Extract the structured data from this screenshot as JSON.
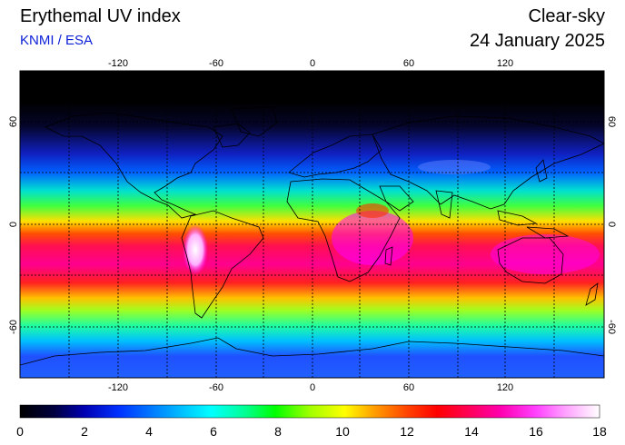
{
  "header": {
    "title": "Erythemal UV index",
    "subtitle": "KNMI / ESA",
    "condition": "Clear-sky",
    "date": "24 January 2025"
  },
  "map": {
    "projection": "equirectangular",
    "lon_ticks": [
      "-120",
      "-60",
      "0",
      "60",
      "120"
    ],
    "lat_ticks_left": [
      "60",
      "0",
      "-60"
    ],
    "lat_ticks_right": [
      "60",
      "0",
      "-60"
    ],
    "graticule": "dotted",
    "field_description_colors": {
      "polar_night": "#000000",
      "low": "#0000ff",
      "mid_low": "#00ffff",
      "mid": "#00ff00",
      "mid_high": "#ffff00",
      "high": "#ff0000",
      "very_high": "#ff00ff",
      "extreme": "#ffffff"
    }
  },
  "colorbar": {
    "min": 0,
    "max": 18,
    "labels": [
      "0",
      "2",
      "4",
      "6",
      "8",
      "10",
      "12",
      "14",
      "16",
      "18"
    ]
  }
}
